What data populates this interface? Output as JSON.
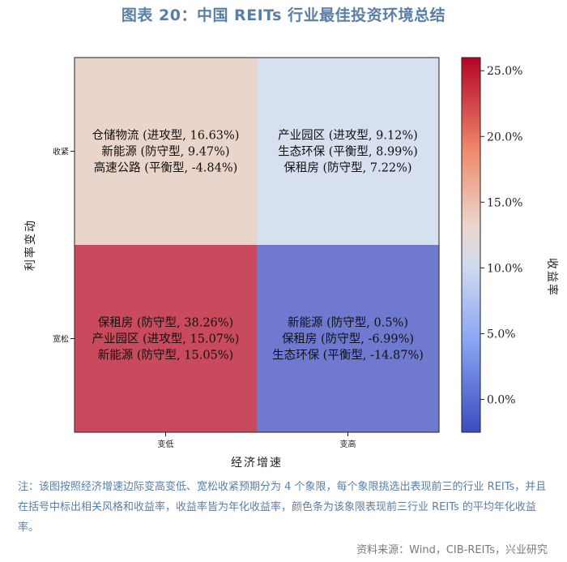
{
  "title": "图表 20：中国 REITs 行业最佳投资环境总结",
  "note": "注：该图按照经济增速边际变高变低、宽松收紧预期分为 4 个象限，每个象限挑选出表现前三的行业 REITs，并且在括号中标出相关风格和收益率，收益率皆为年化收益率，颜色条为该象限表现前三行业 REITs 的平均年化收益率。",
  "source": "资料来源：Wind，CIB-REITs，兴业研究",
  "chart_data": {
    "type": "heatmap",
    "xlabel": "经济增速",
    "ylabel": "利率变动",
    "x_categories": [
      "变低",
      "变高"
    ],
    "y_categories": [
      "收紧",
      "宽松"
    ],
    "colorbar_label": "收益率",
    "colorbar_ticks": [
      "0.0%",
      "5.0%",
      "10.0%",
      "15.0%",
      "20.0%",
      "25.0%"
    ],
    "colorbar_range": [
      -2.5,
      26.0
    ],
    "cells": [
      {
        "x": "变低",
        "y": "收紧",
        "value": 7.09,
        "color": "#ead5cb",
        "lines": [
          "仓储物流 (进攻型, 16.63%)",
          "新能源 (防守型, 9.47%)",
          "高速公路 (平衡型, -4.84%)"
        ]
      },
      {
        "x": "变高",
        "y": "收紧",
        "value": 8.44,
        "color": "#d6e0ef",
        "lines": [
          "产业园区 (进攻型, 9.12%)",
          "生态环保 (平衡型, 8.99%)",
          "保租房 (防守型, 7.22%)"
        ]
      },
      {
        "x": "变低",
        "y": "宽松",
        "value": 22.79,
        "color": "#c94a5d",
        "lines": [
          "保租房 (防守型, 38.26%)",
          "产业园区 (进攻型, 15.07%)",
          "新能源 (防守型, 15.05%)"
        ]
      },
      {
        "x": "变高",
        "y": "宽松",
        "value": -7.12,
        "color": "#7079d0",
        "lines": [
          "新能源 (防守型, 0.5%)",
          "保租房 (防守型, -6.99%)",
          "生态环保 (平衡型, -14.87%)"
        ]
      }
    ]
  }
}
